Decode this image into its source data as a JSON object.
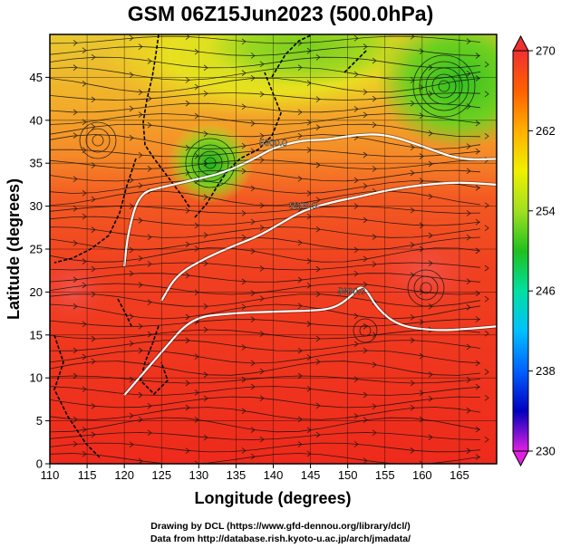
{
  "title": "GSM 06Z15Jun2023 (500.0hPa)",
  "map": {
    "xlabel": "Longitude (degrees)",
    "ylabel": "Latitude  (degrees)",
    "x_ticks": [
      110,
      115,
      120,
      125,
      130,
      135,
      140,
      145,
      150,
      155,
      160,
      165
    ],
    "y_ticks": [
      0,
      5,
      10,
      15,
      20,
      25,
      30,
      35,
      40,
      45
    ],
    "xlim": [
      110,
      170
    ],
    "ylim": [
      0,
      50
    ],
    "field": "temperature (K) shaded, geopotential height contours, wind streamlines",
    "contours": [
      {
        "label": "5800.0",
        "points": [
          [
            120,
            8
          ],
          [
            125,
            13
          ],
          [
            129,
            17
          ],
          [
            134,
            17.5
          ],
          [
            139,
            17.7
          ],
          [
            144,
            17.8
          ],
          [
            148,
            18
          ],
          [
            150.5,
            19.5
          ],
          [
            152,
            21
          ],
          [
            154,
            18
          ],
          [
            157,
            16
          ],
          [
            162,
            15.5
          ],
          [
            166,
            15.7
          ],
          [
            170,
            16
          ]
        ]
      },
      {
        "label": "5800.0",
        "points": [
          [
            125,
            19
          ],
          [
            127,
            22
          ],
          [
            131,
            24
          ],
          [
            135,
            25.5
          ],
          [
            138,
            26.5
          ],
          [
            141,
            28
          ],
          [
            144,
            29.5
          ],
          [
            148,
            30.5
          ],
          [
            151,
            31
          ],
          [
            155,
            31.8
          ],
          [
            160,
            32.5
          ],
          [
            165,
            32.8
          ],
          [
            170,
            32.5
          ]
        ]
      },
      {
        "label": "5800.0",
        "points": [
          [
            120,
            23
          ],
          [
            120.5,
            27
          ],
          [
            122,
            31.5
          ],
          [
            125,
            32.2
          ],
          [
            129,
            33
          ],
          [
            133,
            33.8
          ],
          [
            137,
            35.3
          ],
          [
            140,
            36.8
          ],
          [
            144,
            37.7
          ],
          [
            147,
            37.7
          ],
          [
            151,
            38.3
          ],
          [
            155,
            38.4
          ],
          [
            160,
            37
          ],
          [
            165,
            35.4
          ],
          [
            170,
            35.5
          ]
        ]
      }
    ],
    "colorbar": {
      "labels": [
        "270",
        "262",
        "254",
        "246",
        "238",
        "230"
      ],
      "min": 230,
      "max": 270,
      "colors": [
        "#e020e0",
        "#0000c0",
        "#0060ff",
        "#00c0ff",
        "#00e0a0",
        "#20c020",
        "#a0e020",
        "#f0f000",
        "#ffb000",
        "#ff6000",
        "#f03030"
      ]
    }
  },
  "footer": {
    "line1": "Drawing by DCL (https://www.gfd-dennou.org/library/dcl/)",
    "line2": "Data from http://database.rish.kyoto-u.ac.jp/arch/jmadata/"
  }
}
